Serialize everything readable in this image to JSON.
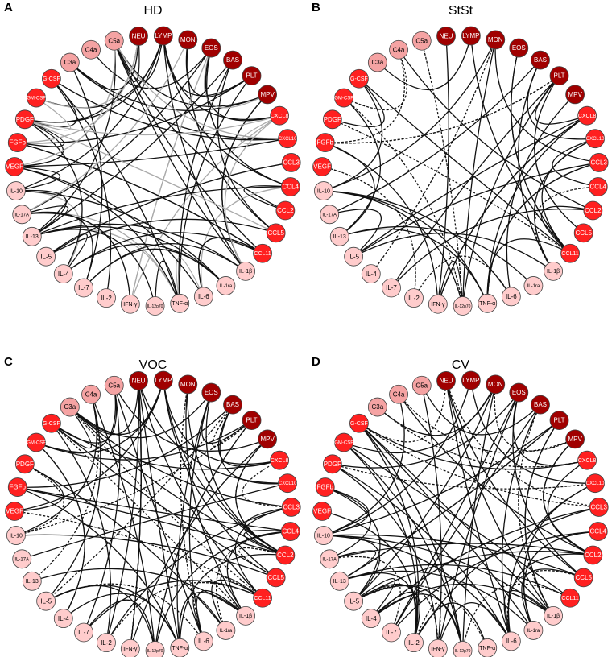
{
  "panels": [
    {
      "letter": "A",
      "title": "HD"
    },
    {
      "letter": "B",
      "title": "StSt"
    },
    {
      "letter": "C",
      "title": "VOC"
    },
    {
      "letter": "D",
      "title": "CV"
    }
  ],
  "nodes": [
    {
      "label": "NEU",
      "color": "#a00000"
    },
    {
      "label": "LYMP",
      "color": "#a00000"
    },
    {
      "label": "MON",
      "color": "#a00000"
    },
    {
      "label": "EOS",
      "color": "#a00000"
    },
    {
      "label": "BAS",
      "color": "#a00000"
    },
    {
      "label": "PLT",
      "color": "#a00000"
    },
    {
      "label": "MPV",
      "color": "#a00000"
    },
    {
      "label": "CXCL8",
      "color": "#ff2020"
    },
    {
      "label": "CXCL10",
      "color": "#ff2020"
    },
    {
      "label": "CCL3",
      "color": "#ff2020"
    },
    {
      "label": "CCL4",
      "color": "#ff2020"
    },
    {
      "label": "CCL2",
      "color": "#ff2020"
    },
    {
      "label": "CCL5",
      "color": "#ff2020"
    },
    {
      "label": "CCL11",
      "color": "#ff2020"
    },
    {
      "label": "IL-1β",
      "color": "#ffcccc"
    },
    {
      "label": "IL-1ra",
      "color": "#ffcccc"
    },
    {
      "label": "IL-6",
      "color": "#ffcccc"
    },
    {
      "label": "TNF-α",
      "color": "#ffcccc"
    },
    {
      "label": "IL-12p70",
      "color": "#ffcccc"
    },
    {
      "label": "IFN-γ",
      "color": "#ffcccc"
    },
    {
      "label": "IL-2",
      "color": "#ffcccc"
    },
    {
      "label": "IL-7",
      "color": "#ffcccc"
    },
    {
      "label": "IL-4",
      "color": "#ffcccc"
    },
    {
      "label": "IL-5",
      "color": "#ffcccc"
    },
    {
      "label": "IL-13",
      "color": "#ffcccc"
    },
    {
      "label": "IL-17A",
      "color": "#ffcccc"
    },
    {
      "label": "IL-10",
      "color": "#ffcccc"
    },
    {
      "label": "VEGF",
      "color": "#ff2020"
    },
    {
      "label": "FGFb",
      "color": "#ff2020"
    },
    {
      "label": "PDGF",
      "color": "#ff2020"
    },
    {
      "label": "GM-CSF",
      "color": "#ff2020"
    },
    {
      "label": "G-CSF",
      "color": "#ff2020"
    },
    {
      "label": "C3a",
      "color": "#f5a3a3"
    },
    {
      "label": "C4a",
      "color": "#f5a3a3"
    },
    {
      "label": "C5a",
      "color": "#f5a3a3"
    }
  ]
}
